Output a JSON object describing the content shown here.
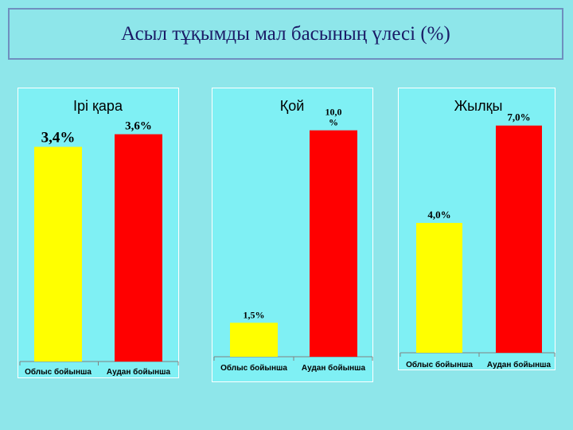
{
  "page": {
    "title": "Асыл тұқымды мал басының үлесі (%)"
  },
  "colors": {
    "background": "#8ee6ea",
    "panel": "#7ff0f4",
    "title_border": "#6f8fbf",
    "title_text": "#1a1a66",
    "oblys_bar": "#ffff00",
    "audan_bar": "#ff0000"
  },
  "chart_data": [
    {
      "type": "bar",
      "title": "Ірі қара",
      "categories": [
        "Облыс бойынша",
        "Аудан бойынша"
      ],
      "values": [
        3.4,
        3.6
      ],
      "data_labels": [
        "3,4%",
        "3,6%"
      ],
      "colors": [
        "#ffff00",
        "#ff0000"
      ],
      "ylim": [
        0,
        4.2
      ]
    },
    {
      "type": "bar",
      "title": "Қой",
      "categories": [
        "Облыс бойынша",
        "Аудан бойынша"
      ],
      "values": [
        1.5,
        10.0
      ],
      "data_labels": [
        "1,5%",
        "10,0 %"
      ],
      "colors": [
        "#ffff00",
        "#ff0000"
      ],
      "ylim": [
        0,
        11.5
      ]
    },
    {
      "type": "bar",
      "title": "Жылқы",
      "categories": [
        "Облыс бойынша",
        "Аудан бойынша"
      ],
      "values": [
        4.0,
        7.0
      ],
      "data_labels": [
        "4,0%",
        "7,0%"
      ],
      "colors": [
        "#ffff00",
        "#ff0000"
      ],
      "ylim": [
        0,
        7.9
      ]
    }
  ]
}
